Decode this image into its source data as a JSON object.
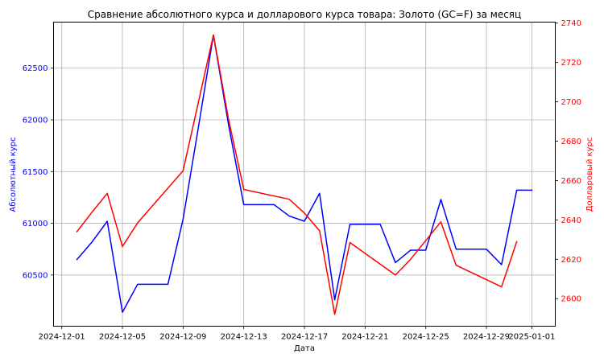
{
  "chart_data": {
    "type": "line",
    "title": "Сравнение абсолютного курса и долларового курса товара: Золото (GC=F) за месяц",
    "xlabel": "Дата",
    "ylabel_left": "Абсолютный курс",
    "ylabel_right": "Долларовый курс",
    "grid": true,
    "colors": {
      "absolute": "#0000ff",
      "dollar": "#ff0000"
    },
    "x_ticks": [
      "2024-12-01",
      "2024-12-05",
      "2024-12-09",
      "2024-12-13",
      "2024-12-17",
      "2024-12-21",
      "2024-12-25",
      "2024-12-29",
      "2025-01-01"
    ],
    "y_left_ticks": [
      "60500",
      "61000",
      "61500",
      "62000",
      "62500"
    ],
    "y_left_tick_values": [
      60500,
      61000,
      61500,
      62000,
      62500
    ],
    "y_right_ticks": [
      "2600",
      "2620",
      "2640",
      "2660",
      "2680",
      "2700",
      "2720",
      "2740"
    ],
    "y_right_tick_values": [
      2600,
      2620,
      2640,
      2660,
      2680,
      2700,
      2720,
      2740
    ],
    "x_range": [
      "2024-11-30T11:00",
      "2025-01-02T13:00"
    ],
    "y_left_range": [
      60005,
      62945
    ],
    "y_right_range": [
      2586,
      2740.5
    ],
    "series": [
      {
        "key": "absolute",
        "axis": "left",
        "x": [
          "2024-12-02",
          "2024-12-03",
          "2024-12-04",
          "2024-12-05",
          "2024-12-06",
          "2024-12-07",
          "2024-12-08",
          "2024-12-09",
          "2024-12-10",
          "2024-12-11",
          "2024-12-12",
          "2024-12-13",
          "2024-12-14",
          "2024-12-15",
          "2024-12-16",
          "2024-12-17",
          "2024-12-18",
          "2024-12-19",
          "2024-12-20",
          "2024-12-21",
          "2024-12-22",
          "2024-12-23",
          "2024-12-24",
          "2024-12-25",
          "2024-12-26",
          "2024-12-27",
          "2024-12-28",
          "2024-12-29",
          "2024-12-30",
          "2024-12-31",
          "2025-01-01"
        ],
        "values": [
          60650,
          60820,
          61020,
          60140,
          60410,
          60410,
          60410,
          61040,
          61920,
          62820,
          61950,
          61180,
          61180,
          61180,
          61070,
          61020,
          61290,
          60260,
          60990,
          60990,
          60990,
          60620,
          60740,
          60740,
          61230,
          60750,
          60750,
          60750,
          60600,
          61320,
          61320
        ]
      },
      {
        "key": "dollar",
        "axis": "right",
        "x": [
          "2024-12-02",
          "2024-12-03",
          "2024-12-04",
          "2024-12-05",
          "2024-12-06",
          "2024-12-09",
          "2024-12-11",
          "2024-12-12",
          "2024-12-13",
          "2024-12-16",
          "2024-12-17",
          "2024-12-18",
          "2024-12-19",
          "2024-12-20",
          "2024-12-23",
          "2024-12-24",
          "2024-12-26",
          "2024-12-27",
          "2024-12-30",
          "2024-12-31"
        ],
        "values": [
          2634,
          2644,
          2653.5,
          2626.5,
          2638.5,
          2665,
          2734,
          2691,
          2655.5,
          2650.5,
          2643.5,
          2634.5,
          2592,
          2628.5,
          2612,
          2620,
          2639,
          2617,
          2606,
          2629
        ]
      }
    ]
  }
}
